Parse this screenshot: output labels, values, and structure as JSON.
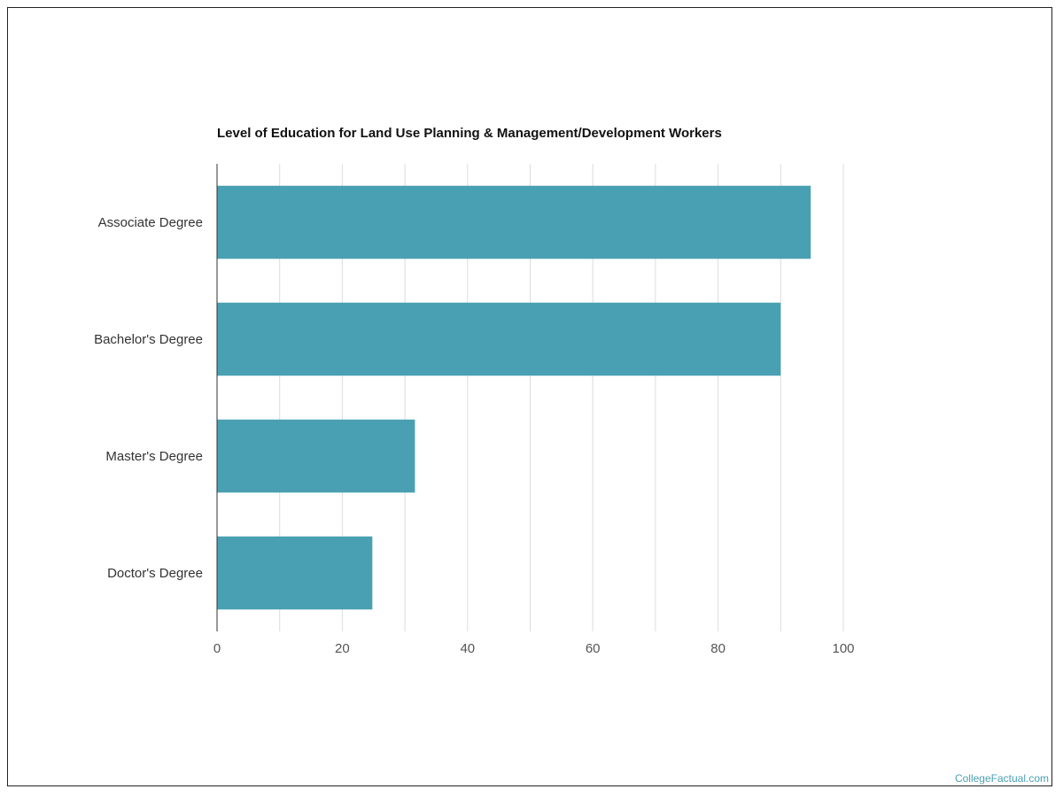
{
  "chart_data": {
    "type": "bar",
    "orientation": "horizontal",
    "title": "Level of Education for Land Use Planning & Management/Development Workers",
    "categories": [
      "Associate Degree",
      "Bachelor's Degree",
      "Master's Degree",
      "Doctor's Degree"
    ],
    "values": [
      94.8,
      90,
      31.6,
      24.8
    ],
    "xlim": [
      0,
      100
    ],
    "xticks": [
      0,
      20,
      40,
      60,
      80,
      100
    ],
    "xlabel": "",
    "ylabel": "",
    "grid": true,
    "bar_color": "#4aa0b3"
  },
  "watermark": "CollegeFactual.com"
}
